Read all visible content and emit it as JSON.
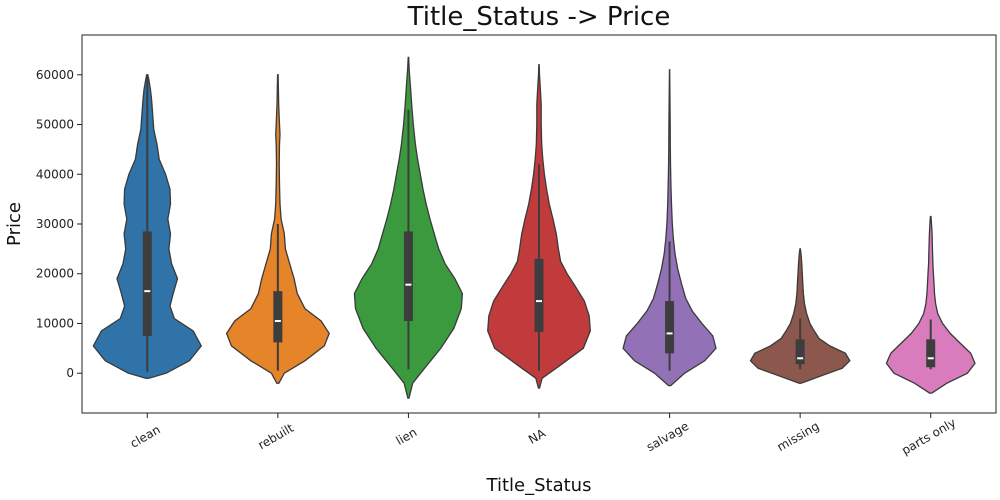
{
  "chart_data": {
    "type": "violin",
    "title": "Title_Status -> Price",
    "xlabel": "Title_Status",
    "ylabel": "Price",
    "ylim": [
      -8000,
      68000
    ],
    "yticks": [
      0,
      10000,
      20000,
      30000,
      40000,
      50000,
      60000
    ],
    "ytick_labels": [
      "0",
      "10000",
      "20000",
      "30000",
      "40000",
      "50000",
      "60000"
    ],
    "grid": false,
    "legend": "none",
    "categories": [
      {
        "name": "clean",
        "color": "#2f73a8",
        "q1": 7500,
        "median": 16500,
        "q3": 28500,
        "whisker_low": 300,
        "whisker_high": 60000,
        "profile": [
          [
            -1000,
            0.03
          ],
          [
            0,
            0.35
          ],
          [
            2500,
            0.78
          ],
          [
            5500,
            1.0
          ],
          [
            8500,
            0.85
          ],
          [
            11000,
            0.5
          ],
          [
            13500,
            0.42
          ],
          [
            16000,
            0.48
          ],
          [
            19000,
            0.56
          ],
          [
            22000,
            0.45
          ],
          [
            25000,
            0.4
          ],
          [
            28000,
            0.43
          ],
          [
            31000,
            0.38
          ],
          [
            34000,
            0.43
          ],
          [
            37000,
            0.42
          ],
          [
            40000,
            0.34
          ],
          [
            43000,
            0.22
          ],
          [
            46000,
            0.18
          ],
          [
            49000,
            0.12
          ],
          [
            52000,
            0.1
          ],
          [
            55000,
            0.08
          ],
          [
            57000,
            0.06
          ],
          [
            59000,
            0.03
          ],
          [
            60000,
            0.01
          ]
        ]
      },
      {
        "name": "rebuilt",
        "color": "#e58428",
        "q1": 6200,
        "median": 10500,
        "q3": 16500,
        "whisker_low": 500,
        "whisker_high": 30000,
        "profile": [
          [
            -2000,
            0.02
          ],
          [
            0,
            0.12
          ],
          [
            2500,
            0.5
          ],
          [
            5500,
            0.86
          ],
          [
            8000,
            0.95
          ],
          [
            10500,
            0.8
          ],
          [
            13000,
            0.5
          ],
          [
            16000,
            0.36
          ],
          [
            19000,
            0.3
          ],
          [
            22000,
            0.22
          ],
          [
            25000,
            0.14
          ],
          [
            28000,
            0.12
          ],
          [
            31000,
            0.06
          ],
          [
            34000,
            0.04
          ],
          [
            38000,
            0.03
          ],
          [
            42000,
            0.025
          ],
          [
            46000,
            0.03
          ],
          [
            48000,
            0.04
          ],
          [
            50000,
            0.03
          ],
          [
            54000,
            0.015
          ],
          [
            57000,
            0.01
          ],
          [
            60000,
            0.005
          ]
        ]
      },
      {
        "name": "lien",
        "color": "#3a9a3d",
        "q1": 10500,
        "median": 17800,
        "q3": 28500,
        "whisker_low": 800,
        "whisker_high": 53000,
        "profile": [
          [
            -5000,
            0.01
          ],
          [
            -2000,
            0.08
          ],
          [
            1000,
            0.3
          ],
          [
            5000,
            0.6
          ],
          [
            9000,
            0.84
          ],
          [
            13000,
            0.98
          ],
          [
            16000,
            1.0
          ],
          [
            19000,
            0.86
          ],
          [
            22000,
            0.68
          ],
          [
            25000,
            0.56
          ],
          [
            28000,
            0.48
          ],
          [
            31000,
            0.4
          ],
          [
            34000,
            0.33
          ],
          [
            37000,
            0.27
          ],
          [
            40000,
            0.22
          ],
          [
            43000,
            0.17
          ],
          [
            46000,
            0.13
          ],
          [
            50000,
            0.09
          ],
          [
            54000,
            0.06
          ],
          [
            58000,
            0.035
          ],
          [
            61000,
            0.015
          ],
          [
            63500,
            0.005
          ]
        ]
      },
      {
        "name": "NA",
        "color": "#c13b3c",
        "q1": 8300,
        "median": 14500,
        "q3": 23000,
        "whisker_low": 500,
        "whisker_high": 42000,
        "profile": [
          [
            -3000,
            0.01
          ],
          [
            -1000,
            0.06
          ],
          [
            1500,
            0.38
          ],
          [
            5000,
            0.82
          ],
          [
            8500,
            0.95
          ],
          [
            11500,
            0.93
          ],
          [
            14500,
            0.84
          ],
          [
            17500,
            0.67
          ],
          [
            20000,
            0.52
          ],
          [
            22500,
            0.4
          ],
          [
            25000,
            0.36
          ],
          [
            28000,
            0.32
          ],
          [
            31000,
            0.26
          ],
          [
            34000,
            0.19
          ],
          [
            37000,
            0.14
          ],
          [
            40000,
            0.1
          ],
          [
            43000,
            0.07
          ],
          [
            46000,
            0.05
          ],
          [
            50000,
            0.04
          ],
          [
            54000,
            0.04
          ],
          [
            57000,
            0.025
          ],
          [
            60000,
            0.01
          ],
          [
            62000,
            0.003
          ]
        ]
      },
      {
        "name": "salvage",
        "color": "#9371b7",
        "q1": 4000,
        "median": 8000,
        "q3": 14500,
        "whisker_low": 500,
        "whisker_high": 26500,
        "profile": [
          [
            -2500,
            0.02
          ],
          [
            0,
            0.28
          ],
          [
            2500,
            0.65
          ],
          [
            5000,
            0.86
          ],
          [
            7500,
            0.8
          ],
          [
            10000,
            0.6
          ],
          [
            12500,
            0.42
          ],
          [
            15000,
            0.3
          ],
          [
            18000,
            0.22
          ],
          [
            21000,
            0.15
          ],
          [
            24000,
            0.1
          ],
          [
            27000,
            0.07
          ],
          [
            30000,
            0.05
          ],
          [
            34000,
            0.035
          ],
          [
            38000,
            0.025
          ],
          [
            42000,
            0.018
          ],
          [
            46000,
            0.014
          ],
          [
            50000,
            0.012
          ],
          [
            54000,
            0.008
          ],
          [
            58000,
            0.005
          ],
          [
            61000,
            0.002
          ]
        ]
      },
      {
        "name": "missing",
        "color": "#8c574c",
        "q1": 1800,
        "median": 3000,
        "q3": 6800,
        "whisker_low": 800,
        "whisker_high": 11000,
        "profile": [
          [
            -2000,
            0.02
          ],
          [
            -500,
            0.4
          ],
          [
            1000,
            0.78
          ],
          [
            2500,
            0.92
          ],
          [
            4000,
            0.84
          ],
          [
            5500,
            0.55
          ],
          [
            7000,
            0.35
          ],
          [
            8500,
            0.26
          ],
          [
            10000,
            0.18
          ],
          [
            12000,
            0.12
          ],
          [
            14000,
            0.08
          ],
          [
            16000,
            0.06
          ],
          [
            18000,
            0.05
          ],
          [
            20000,
            0.04
          ],
          [
            22000,
            0.03
          ],
          [
            24000,
            0.015
          ],
          [
            25000,
            0.005
          ]
        ]
      },
      {
        "name": "parts only",
        "color": "#d97cbd",
        "q1": 1200,
        "median": 3000,
        "q3": 6800,
        "whisker_low": 800,
        "whisker_high": 10800,
        "profile": [
          [
            -4000,
            0.02
          ],
          [
            -2000,
            0.3
          ],
          [
            0,
            0.68
          ],
          [
            2000,
            0.82
          ],
          [
            4000,
            0.74
          ],
          [
            6000,
            0.55
          ],
          [
            8000,
            0.36
          ],
          [
            10000,
            0.22
          ],
          [
            12000,
            0.13
          ],
          [
            14000,
            0.09
          ],
          [
            16000,
            0.07
          ],
          [
            18000,
            0.06
          ],
          [
            20000,
            0.05
          ],
          [
            22000,
            0.04
          ],
          [
            24000,
            0.035
          ],
          [
            26000,
            0.03
          ],
          [
            28000,
            0.025
          ],
          [
            30000,
            0.015
          ],
          [
            31500,
            0.005
          ]
        ]
      }
    ]
  }
}
